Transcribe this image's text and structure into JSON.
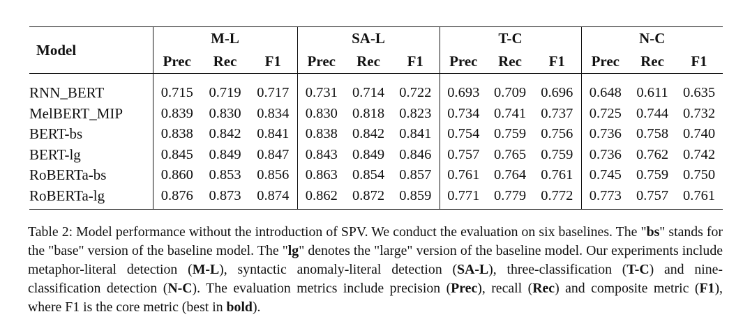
{
  "table": {
    "model_header": "Model",
    "groups": [
      "M-L",
      "SA-L",
      "T-C",
      "N-C"
    ],
    "metrics": [
      "Prec",
      "Rec",
      "F1"
    ],
    "rows": [
      {
        "model": "RNN_BERT",
        "values": [
          "0.715",
          "0.719",
          "0.717",
          "0.731",
          "0.714",
          "0.722",
          "0.693",
          "0.709",
          "0.696",
          "0.648",
          "0.611",
          "0.635"
        ],
        "bold": [
          false,
          false,
          false,
          false,
          false,
          false,
          false,
          false,
          false,
          false,
          false,
          false
        ]
      },
      {
        "model": "MelBERT_MIP",
        "values": [
          "0.839",
          "0.830",
          "0.834",
          "0.830",
          "0.818",
          "0.823",
          "0.734",
          "0.741",
          "0.737",
          "0.725",
          "0.744",
          "0.732"
        ],
        "bold": [
          false,
          false,
          false,
          false,
          false,
          false,
          false,
          false,
          false,
          false,
          false,
          false
        ]
      },
      {
        "model": "BERT-bs",
        "values": [
          "0.838",
          "0.842",
          "0.841",
          "0.838",
          "0.842",
          "0.841",
          "0.754",
          "0.759",
          "0.756",
          "0.736",
          "0.758",
          "0.740"
        ],
        "bold": [
          false,
          false,
          false,
          false,
          false,
          false,
          false,
          false,
          false,
          false,
          false,
          false
        ]
      },
      {
        "model": "BERT-lg",
        "values": [
          "0.845",
          "0.849",
          "0.847",
          "0.843",
          "0.849",
          "0.846",
          "0.757",
          "0.765",
          "0.759",
          "0.736",
          "0.762",
          "0.742"
        ],
        "bold": [
          false,
          false,
          false,
          false,
          false,
          false,
          false,
          false,
          false,
          false,
          true,
          false
        ]
      },
      {
        "model": "RoBERTa-bs",
        "values": [
          "0.860",
          "0.853",
          "0.856",
          "0.863",
          "0.854",
          "0.857",
          "0.761",
          "0.764",
          "0.761",
          "0.745",
          "0.759",
          "0.750"
        ],
        "bold": [
          false,
          false,
          false,
          true,
          false,
          false,
          false,
          false,
          false,
          false,
          false,
          false
        ]
      },
      {
        "model": "RoBERTa-lg",
        "values": [
          "0.876",
          "0.873",
          "0.874",
          "0.862",
          "0.872",
          "0.859",
          "0.771",
          "0.779",
          "0.772",
          "0.773",
          "0.757",
          "0.761"
        ],
        "bold": [
          true,
          true,
          true,
          false,
          true,
          true,
          true,
          true,
          true,
          true,
          false,
          true
        ]
      }
    ]
  },
  "caption": {
    "label": "Table 2:",
    "s1": " Model performance without the introduction of SPV. We conduct the evaluation on six baselines. The \"",
    "bs": "bs",
    "s2": "\" stands for the \"base\" version of the baseline model. The \"",
    "lg": "lg",
    "s3": "\" denotes the \"large\" version of the baseline model. Our experiments include metaphor-literal detection (",
    "ml": "M-L",
    "s4": "), syntactic anomaly-literal detection (",
    "sal": "SA-L",
    "s5": "), three-classification (",
    "tc": "T-C",
    "s6": ") and nine-classification detection (",
    "nc": "N-C",
    "s7": "). The evaluation metrics include precision (",
    "prec": "Prec",
    "s8": "), recall (",
    "rec": "Rec",
    "s9": ") and composite metric (",
    "f1": "F1",
    "s10": "), where F1 is the core metric (best in ",
    "boldword": "bold",
    "s11": ")."
  }
}
